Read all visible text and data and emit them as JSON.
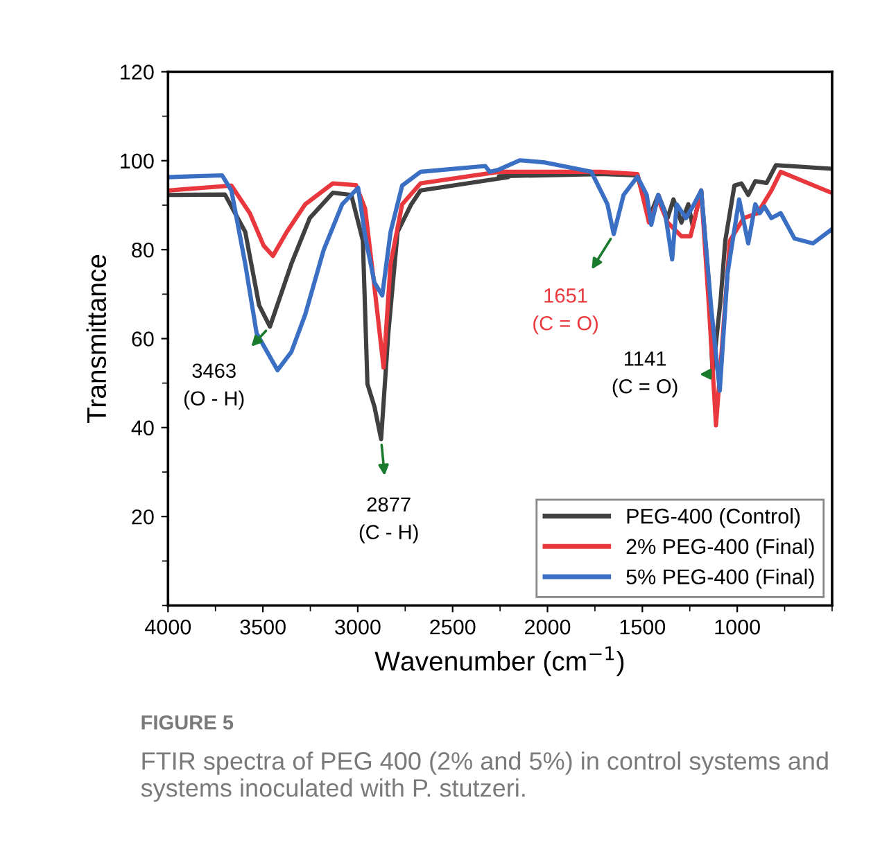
{
  "chart_data": {
    "type": "line",
    "xlabel": "Wavenumber (cm$^{−1}$)",
    "ylabel": "Transmittance",
    "xlim": [
      4000,
      500
    ],
    "ylim": [
      0,
      120
    ],
    "xticks": [
      4000,
      3500,
      3000,
      2500,
      2000,
      1500,
      1000
    ],
    "yticks": [
      20,
      40,
      60,
      80,
      100,
      120
    ],
    "grid": false,
    "legend": "bottom right",
    "marker": "none",
    "line_style": "solid",
    "series": [
      {
        "name": "PEG-400 (Control)",
        "color": "#404040",
        "x": [
          4000,
          3700,
          3593,
          3520,
          3463,
          3350,
          3253,
          3131,
          3034,
          2973,
          2949,
          2912,
          2877,
          2839,
          2790,
          2718,
          2669,
          2206,
          2256,
          1720,
          1526,
          1465,
          1416,
          1367,
          1336,
          1294,
          1258,
          1234,
          1190,
          1148,
          1130,
          1088,
          1063,
          1015,
          978,
          942,
          905,
          845,
          796,
          504
        ],
        "values": [
          92.3,
          92.4,
          84,
          67.5,
          62.7,
          76.8,
          87.1,
          92.8,
          92.3,
          82,
          49.8,
          44.7,
          37.4,
          61.2,
          84,
          90.2,
          93.3,
          96.3,
          96.5,
          97,
          96.7,
          87.1,
          92.3,
          87.1,
          91.3,
          86.1,
          90.2,
          85.1,
          93.3,
          71.6,
          52,
          68.5,
          82,
          94.4,
          94.9,
          92.3,
          95.4,
          95,
          99,
          98.2
        ]
      },
      {
        "name": "2% PEG-400 (Final)",
        "color": "#e8383d",
        "x": [
          4000,
          3666,
          3569,
          3496,
          3447,
          3374,
          3277,
          3131,
          3009,
          2961,
          2912,
          2864,
          2827,
          2766,
          2669,
          2256,
          1720,
          1526,
          1465,
          1416,
          1367,
          1294,
          1246,
          1190,
          1148,
          1112,
          1075,
          1039,
          966,
          893,
          820,
          771,
          504
        ],
        "values": [
          93.3,
          94.4,
          88.2,
          80.9,
          78.6,
          84,
          90.2,
          94.9,
          94.5,
          89.2,
          71.6,
          53.5,
          76.8,
          90.2,
          94.9,
          97.5,
          97.5,
          97,
          86.1,
          91.3,
          86.1,
          83,
          83,
          93.3,
          66.4,
          40.5,
          61.2,
          82,
          87.1,
          88.2,
          93.3,
          97.5,
          92.8
        ]
      },
      {
        "name": "5% PEG-400 (Final)",
        "color": "#3a6fc4",
        "x": [
          4000,
          3715,
          3666,
          3593,
          3533,
          3423,
          3350,
          3277,
          3180,
          3082,
          2998,
          2961,
          2912,
          2871,
          2827,
          2766,
          2669,
          2328,
          2304,
          2256,
          2146,
          2012,
          1769,
          1684,
          1651,
          1599,
          1526,
          1477,
          1453,
          1416,
          1380,
          1343,
          1319,
          1270,
          1234,
          1190,
          1136,
          1092,
          1051,
          990,
          942,
          905,
          881,
          857,
          820,
          771,
          698,
          601,
          504
        ],
        "values": [
          96.3,
          96.7,
          93.3,
          76.8,
          61.2,
          52.9,
          57,
          65.4,
          79.9,
          90.2,
          93.9,
          83,
          72.6,
          69.7,
          84,
          94.4,
          97.5,
          98.8,
          97.5,
          98,
          100.1,
          99.6,
          97.5,
          90.2,
          83.5,
          92.3,
          96.4,
          92.3,
          85.6,
          92.3,
          88.2,
          77.8,
          90.2,
          87.1,
          89.7,
          93.3,
          66.4,
          48.3,
          74.7,
          91.3,
          81.4,
          90.2,
          88.2,
          89.7,
          87.1,
          88.2,
          82.5,
          81.4,
          84.5
        ]
      }
    ],
    "annotations": [
      {
        "text": "3463\n(O - H)",
        "x": 3463,
        "y": 62.7
      },
      {
        "text": "2877\n(C - H)",
        "x": 2877,
        "y": 37.4
      },
      {
        "text": "1651\n(C = O)",
        "x": 1651,
        "y": 83.5
      },
      {
        "text": "1141\n(C = O)",
        "x": 1141,
        "y": 52
      },
      "FIGURE 5",
      "FTIR spectra of PEG 400 (2% and 5%) in control systems and systems inoculated with P. stutzeri."
    ]
  }
}
